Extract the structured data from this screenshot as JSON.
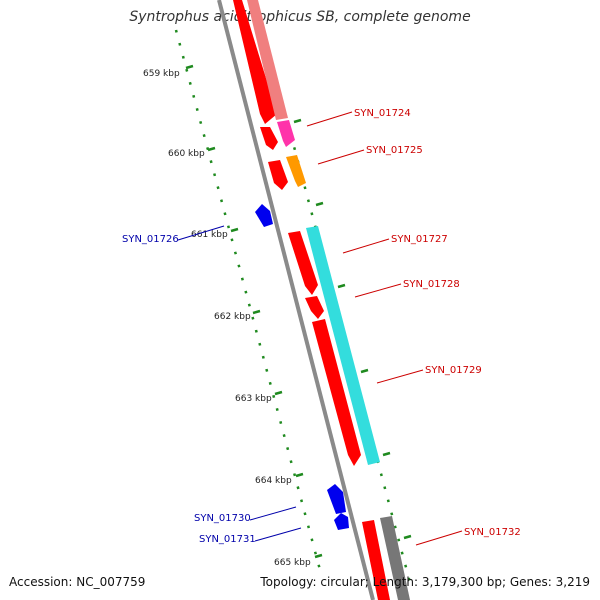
{
  "title": "Syntrophus aciditrophicus SB, complete genome",
  "footer": {
    "accession": "Accession: NC_007759",
    "summary": "Topology: circular; Length: 3,179,300 bp; Genes: 3,219"
  },
  "colors": {
    "backbone": "#8a8a8a",
    "scale_dots": "#1f8a1f",
    "forward_label": "#cc0000",
    "reverse_label": "#0000aa",
    "red": "#ff0000",
    "pink": "#f07f7f",
    "magenta": "#ff33aa",
    "orange": "#ff9900",
    "cyan": "#33dddd",
    "blue": "#0000ee",
    "gray": "#777777"
  },
  "scale_labels": [
    "659 kbp",
    "660 kbp",
    "661 kbp",
    "662 kbp",
    "663 kbp",
    "664 kbp",
    "665 kbp"
  ],
  "gene_labels": [
    {
      "text": "SYN_01724",
      "strand": "forward"
    },
    {
      "text": "SYN_01725",
      "strand": "forward"
    },
    {
      "text": "SYN_01726",
      "strand": "reverse"
    },
    {
      "text": "SYN_01727",
      "strand": "forward"
    },
    {
      "text": "SYN_01728",
      "strand": "forward"
    },
    {
      "text": "SYN_01729",
      "strand": "forward"
    },
    {
      "text": "SYN_01730",
      "strand": "reverse"
    },
    {
      "text": "SYN_01731",
      "strand": "reverse"
    },
    {
      "text": "SYN_01732",
      "strand": "forward"
    }
  ]
}
